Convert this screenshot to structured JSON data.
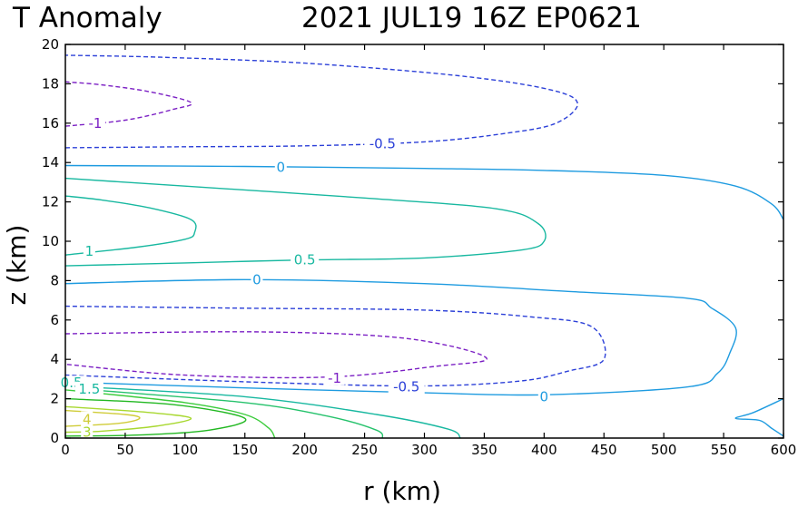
{
  "chart_data": {
    "type": "contour",
    "title": "T Anomaly",
    "subtitle": "2021 JUL19 16Z   EP0621",
    "xlabel": "r (km)",
    "ylabel": "z (km)",
    "xlim": [
      0,
      600
    ],
    "ylim": [
      0,
      20
    ],
    "xticks": [
      0,
      50,
      100,
      150,
      200,
      250,
      300,
      350,
      400,
      450,
      500,
      550,
      600
    ],
    "yticks": [
      0,
      2,
      4,
      6,
      8,
      10,
      12,
      14,
      16,
      18,
      20
    ],
    "grid": false,
    "legend": "none",
    "contours": [
      {
        "level": -1,
        "color": "#7b1fc4",
        "dashed": true,
        "label": {
          "text": "-1",
          "at": [
            25,
            16.0
          ]
        },
        "points": [
          [
            0,
            15.85
          ],
          [
            50,
            16.15
          ],
          [
            90,
            16.7
          ],
          [
            105,
            17.05
          ],
          [
            70,
            17.6
          ],
          [
            30,
            17.95
          ],
          [
            0,
            18.1
          ]
        ]
      },
      {
        "level": -0.5,
        "color": "#2c40d8",
        "dashed": true,
        "label": {
          "text": "-0.5",
          "at": [
            265,
            14.95
          ]
        },
        "points": [
          [
            0,
            14.75
          ],
          [
            100,
            14.8
          ],
          [
            200,
            14.85
          ],
          [
            300,
            15.05
          ],
          [
            370,
            15.5
          ],
          [
            410,
            16.0
          ],
          [
            428,
            17.0
          ],
          [
            405,
            17.7
          ],
          [
            330,
            18.4
          ],
          [
            200,
            19.05
          ],
          [
            80,
            19.35
          ],
          [
            0,
            19.45
          ]
        ]
      },
      {
        "level": 0,
        "color": "#1e9be0",
        "dashed": false,
        "label": {
          "text": "0",
          "at": [
            180,
            13.75
          ]
        },
        "points": [
          [
            0,
            13.85
          ],
          [
            150,
            13.8
          ],
          [
            300,
            13.7
          ],
          [
            400,
            13.6
          ],
          [
            500,
            13.35
          ],
          [
            560,
            12.8
          ],
          [
            590,
            11.9
          ],
          [
            600,
            11.1
          ]
        ]
      },
      {
        "level": 0.5,
        "color": "#18b8a0",
        "dashed": false,
        "label": {
          "text": "0.5",
          "at": [
            200,
            9.05
          ]
        },
        "points": [
          [
            0,
            8.75
          ],
          [
            100,
            8.9
          ],
          [
            200,
            9.05
          ],
          [
            300,
            9.15
          ],
          [
            380,
            9.55
          ],
          [
            400,
            10.0
          ],
          [
            395,
            10.9
          ],
          [
            360,
            11.65
          ],
          [
            250,
            12.2
          ],
          [
            100,
            12.8
          ],
          [
            0,
            13.2
          ]
        ]
      },
      {
        "level": 1,
        "color": "#18b8a0",
        "dashed": false,
        "label": {
          "text": "1",
          "at": [
            20,
            9.5
          ]
        },
        "points": [
          [
            0,
            9.3
          ],
          [
            60,
            9.7
          ],
          [
            100,
            10.1
          ],
          [
            108,
            10.45
          ],
          [
            105,
            11.1
          ],
          [
            70,
            11.7
          ],
          [
            30,
            12.1
          ],
          [
            0,
            12.3
          ]
        ]
      },
      {
        "level": 0,
        "color": "#1e9be0",
        "dashed": false,
        "label": {
          "text": "0",
          "at": [
            160,
            8.05
          ]
        },
        "points": [
          [
            0,
            7.85
          ],
          [
            150,
            8.05
          ],
          [
            300,
            7.85
          ],
          [
            420,
            7.45
          ],
          [
            520,
            7.1
          ],
          [
            540,
            6.6
          ],
          [
            560,
            5.6
          ],
          [
            555,
            4.3
          ],
          [
            545,
            3.3
          ],
          [
            520,
            2.6
          ],
          [
            400,
            2.2
          ],
          [
            300,
            2.3
          ],
          [
            150,
            2.55
          ],
          [
            0,
            2.85
          ]
        ]
      },
      {
        "level": -0.5,
        "color": "#2c40d8",
        "dashed": true,
        "label": {
          "text": "-0.5",
          "at": [
            285,
            2.6
          ]
        },
        "points": [
          [
            0,
            6.7
          ],
          [
            150,
            6.6
          ],
          [
            300,
            6.5
          ],
          [
            390,
            6.15
          ],
          [
            440,
            5.65
          ],
          [
            450,
            4.0
          ],
          [
            420,
            3.4
          ],
          [
            380,
            2.9
          ],
          [
            300,
            2.65
          ],
          [
            180,
            2.8
          ],
          [
            0,
            3.2
          ]
        ]
      },
      {
        "level": -1,
        "color": "#7b1fc4",
        "dashed": true,
        "label": {
          "text": "-1",
          "at": [
            225,
            3.05
          ]
        },
        "points": [
          [
            0,
            5.3
          ],
          [
            150,
            5.4
          ],
          [
            260,
            5.2
          ],
          [
            320,
            4.7
          ],
          [
            352,
            4.0
          ],
          [
            310,
            3.65
          ],
          [
            220,
            3.1
          ],
          [
            100,
            3.2
          ],
          [
            0,
            3.75
          ]
        ]
      },
      {
        "level": 0.5,
        "color": "#18b8a0",
        "dashed": false,
        "points": [
          [
            0,
            2.65
          ],
          [
            150,
            2.1
          ],
          [
            260,
            1.2
          ],
          [
            320,
            0.45
          ],
          [
            330,
            0
          ]
        ]
      },
      {
        "level": 1,
        "color": "#26c26c",
        "dashed": false,
        "points": [
          [
            0,
            2.55
          ],
          [
            150,
            1.8
          ],
          [
            220,
            1.1
          ],
          [
            260,
            0.4
          ],
          [
            265,
            0
          ]
        ]
      },
      {
        "level": 1.5,
        "color": "#3ccc3c",
        "dashed": false,
        "points": [
          [
            0,
            2.45
          ],
          [
            100,
            1.8
          ],
          [
            150,
            1.2
          ],
          [
            170,
            0.5
          ],
          [
            175,
            0
          ]
        ]
      },
      {
        "level": 2,
        "color": "#22b822",
        "dashed": false,
        "points": [
          [
            0,
            2.0
          ],
          [
            90,
            1.7
          ],
          [
            150,
            1.0
          ],
          [
            120,
            0.4
          ],
          [
            60,
            0.15
          ],
          [
            0,
            0.1
          ]
        ]
      },
      {
        "level": 3,
        "color": "#a8d830",
        "dashed": false,
        "points": [
          [
            0,
            1.6
          ],
          [
            70,
            1.3
          ],
          [
            105,
            1.0
          ],
          [
            75,
            0.6
          ],
          [
            30,
            0.35
          ],
          [
            0,
            0.3
          ]
        ]
      },
      {
        "level": 4,
        "color": "#d0cc38",
        "dashed": false,
        "label": {
          "text": "4",
          "at": [
            18,
            0.95
          ]
        },
        "points": [
          [
            0,
            1.4
          ],
          [
            50,
            1.2
          ],
          [
            62,
            1.0
          ],
          [
            45,
            0.75
          ],
          [
            0,
            0.6
          ]
        ]
      },
      {
        "level": 0,
        "color": "#1e9be0",
        "dashed": false,
        "points": [
          [
            600,
            2.0
          ],
          [
            575,
            1.3
          ],
          [
            560,
            1.0
          ],
          [
            580,
            0.9
          ],
          [
            590,
            0.5
          ],
          [
            600,
            0.1
          ]
        ]
      }
    ],
    "inline_labels": [
      {
        "text": "0",
        "at": [
          400,
          2.1
        ],
        "color": "#1e9be0"
      },
      {
        "text": "0.5",
        "at": [
          5,
          2.8
        ],
        "color": "#18b8a0"
      },
      {
        "text": "1.5",
        "at": [
          20,
          2.5
        ],
        "color": "#18b8a0"
      },
      {
        "text": "3",
        "at": [
          18,
          0.3
        ],
        "color": "#a8d830"
      }
    ]
  }
}
